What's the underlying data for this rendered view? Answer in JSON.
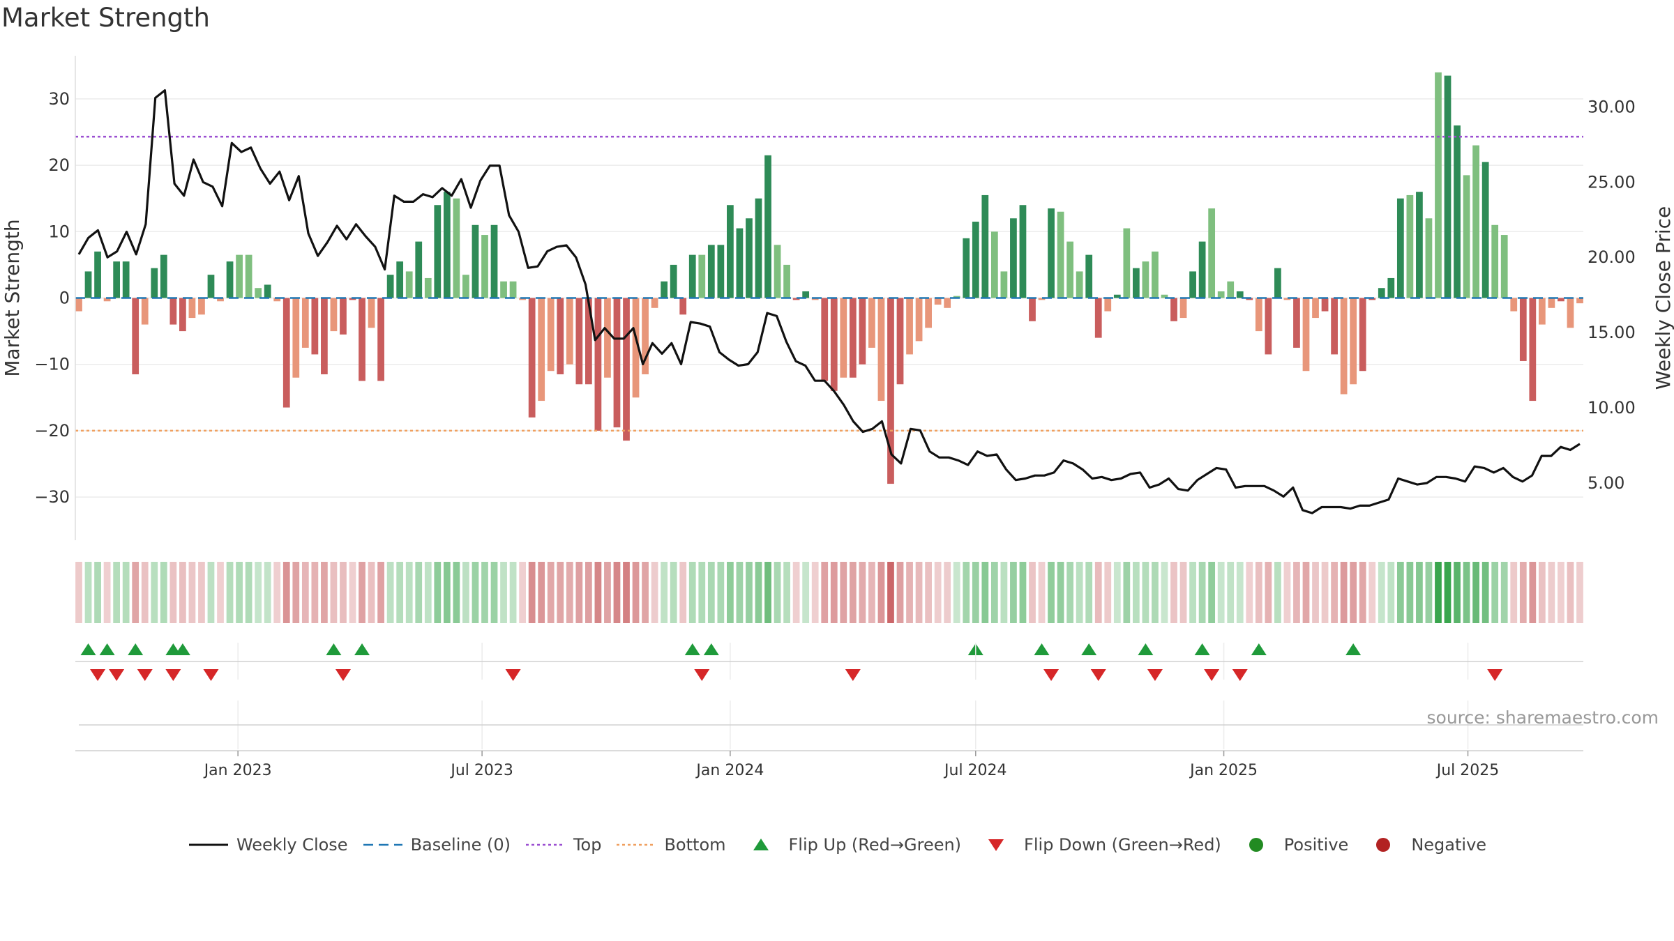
{
  "title": "Market Strength",
  "source": "source: sharemaestro.com",
  "colors": {
    "pos_dark": "#2e8b57",
    "pos_light": "#7fbf7f",
    "neg_dark": "#c95d5d",
    "neg_light": "#e8967a",
    "close": "#111111",
    "baseline": "#1f77b4",
    "top": "#9b4fd1",
    "bottom": "#f0a060",
    "flip_up": "#1f9a3a",
    "flip_down": "#d62728",
    "positive": "#228b22",
    "negative": "#b22222"
  },
  "chart_data": {
    "type": "bar",
    "left_axis": {
      "label": "Market Strength",
      "ticks": [
        30,
        20,
        10,
        0,
        -10,
        -20,
        -30
      ],
      "tick_labels": [
        "30",
        "20",
        "10",
        "0",
        "−10",
        "−20",
        "−30"
      ],
      "range": [
        -36.5,
        36.5
      ]
    },
    "right_axis": {
      "label": "Weekly Close Price",
      "ticks": [
        30,
        25,
        20,
        15,
        10,
        5
      ],
      "tick_labels": [
        "30.00",
        "25.00",
        "20.00",
        "15.00",
        "10.00",
        "5.00"
      ],
      "range": [
        1.2,
        33.4
      ]
    },
    "x_axis": {
      "start": "2022-09-05",
      "end": "2025-09-22",
      "ticks": [
        "2023-01-01",
        "2023-07-01",
        "2024-01-01",
        "2024-07-01",
        "2025-01-01",
        "2025-07-01"
      ],
      "tick_labels": [
        "Jan 2023",
        "Jul 2023",
        "Jan 2024",
        "Jul 2024",
        "Jan 2025",
        "Jul 2025"
      ]
    },
    "top_line": 24.3,
    "bottom_line": -20.0,
    "baseline": 0,
    "strength": [
      -2,
      4,
      7,
      -0.5,
      5.5,
      5.5,
      -11.5,
      -4,
      4.5,
      6.5,
      -4,
      -5,
      -3,
      -2.5,
      3.5,
      -0.5,
      5.5,
      6.5,
      6.5,
      1.5,
      2,
      -0.5,
      -16.5,
      -12,
      -7.5,
      -8.5,
      -11.5,
      -5,
      -5.5,
      -0.3,
      -12.5,
      -4.5,
      -12.5,
      3.5,
      5.5,
      4,
      8.5,
      3,
      14,
      16,
      15,
      3.5,
      11,
      9.5,
      11,
      2.5,
      2.5,
      -0.3,
      -18,
      -15.5,
      -11,
      -11.5,
      -10,
      -13,
      -13,
      -20,
      -12,
      -19.5,
      -21.5,
      -15,
      -11.5,
      -1.5,
      2.5,
      5,
      -2.5,
      6.5,
      6.5,
      8,
      8,
      14,
      10.5,
      12,
      15,
      21.5,
      8,
      5,
      -0.3,
      1,
      -0.3,
      -12.5,
      -14,
      -12,
      -12,
      -10,
      -7.5,
      -15.5,
      -28,
      -13,
      -8.5,
      -6.5,
      -4.5,
      -1,
      -1.5,
      0.3,
      9,
      11.5,
      15.5,
      10,
      4,
      12,
      14,
      -3.5,
      -0.3,
      13.5,
      13,
      8.5,
      4,
      6.5,
      -6,
      -2,
      0.5,
      10.5,
      4.5,
      5.5,
      7,
      0.5,
      -3.5,
      -3,
      4,
      8.5,
      13.5,
      1,
      2.5,
      1,
      -0.3,
      -5,
      -8.5,
      4.5,
      -0.3,
      -7.5,
      -11,
      -3,
      -2,
      -8.5,
      -14.5,
      -13,
      -11,
      -0.3,
      1.5,
      3,
      15,
      15.5,
      16,
      12,
      34,
      33.5,
      26,
      18.5,
      23,
      20.5,
      11,
      9.5,
      -2,
      -9.5,
      -15.5,
      -4,
      -1.5,
      -0.5,
      -4.5,
      -0.8
    ],
    "shade": [
      1,
      0,
      0,
      1,
      0,
      0,
      0,
      1,
      0,
      0,
      0,
      0,
      1,
      1,
      0,
      1,
      0,
      1,
      1,
      1,
      0,
      1,
      0,
      1,
      1,
      0,
      0,
      1,
      0,
      0,
      0,
      1,
      0,
      0,
      0,
      1,
      0,
      1,
      0,
      0,
      1,
      1,
      0,
      1,
      0,
      1,
      1,
      1,
      0,
      1,
      1,
      0,
      1,
      0,
      0,
      0,
      1,
      0,
      0,
      1,
      1,
      1,
      0,
      0,
      0,
      0,
      1,
      0,
      0,
      0,
      0,
      0,
      0,
      0,
      1,
      1,
      0,
      0,
      1,
      0,
      0,
      1,
      0,
      0,
      1,
      1,
      0,
      0,
      1,
      1,
      1,
      1,
      1,
      1,
      0,
      0,
      0,
      1,
      1,
      0,
      0,
      0,
      1,
      0,
      1,
      1,
      1,
      0,
      0,
      1,
      0,
      1,
      0,
      1,
      1,
      1,
      0,
      1,
      0,
      0,
      1,
      1,
      1,
      0,
      0,
      1,
      0,
      0,
      1,
      0,
      1,
      1,
      0,
      0,
      1,
      1,
      0,
      0,
      0,
      0,
      0,
      1,
      0,
      1,
      1,
      0,
      0,
      1,
      1,
      0,
      1,
      1,
      1,
      0,
      0,
      1,
      1,
      0,
      1,
      1
    ],
    "weekly_close": [
      20.2,
      21.3,
      21.8,
      20,
      20.4,
      21.7,
      20.2,
      22.2,
      30.6,
      31.1,
      24.9,
      24.1,
      26.5,
      25,
      24.7,
      23.4,
      27.6,
      27,
      27.3,
      25.9,
      24.9,
      25.7,
      23.8,
      25.4,
      21.6,
      20.1,
      21,
      22.1,
      21.2,
      22.2,
      21.4,
      20.7,
      19.2,
      24.1,
      23.7,
      23.7,
      24.2,
      24,
      24.6,
      24.1,
      25.2,
      23.3,
      25.1,
      26.1,
      26.1,
      22.8,
      21.7,
      19.3,
      19.4,
      20.4,
      20.7,
      20.8,
      20,
      18.2,
      14.5,
      15.3,
      14.6,
      14.6,
      15.3,
      12.9,
      14.3,
      13.6,
      14.3,
      12.9,
      15.7,
      15.6,
      15.4,
      13.7,
      13.2,
      12.8,
      12.9,
      13.7,
      16.3,
      16.1,
      14.4,
      13.1,
      12.8,
      11.8,
      11.8,
      11.1,
      10.2,
      9.1,
      8.4,
      8.6,
      9.1,
      6.9,
      6.3,
      8.6,
      8.5,
      7.1,
      6.7,
      6.7,
      6.5,
      6.2,
      7.1,
      6.8,
      6.9,
      5.9,
      5.2,
      5.3,
      5.5,
      5.5,
      5.7,
      6.5,
      6.3,
      5.9,
      5.3,
      5.4,
      5.2,
      5.3,
      5.6,
      5.7,
      4.7,
      4.9,
      5.3,
      4.6,
      4.5,
      5.2,
      5.6,
      6,
      5.9,
      4.7,
      4.8,
      4.8,
      4.8,
      4.5,
      4.1,
      4.7,
      3.2,
      3,
      3.4,
      3.4,
      3.4,
      3.3,
      3.5,
      3.5,
      3.7,
      3.9,
      5.3,
      5.1,
      4.9,
      5,
      5.4,
      5.4,
      5.3,
      5.1,
      6.1,
      6,
      5.7,
      6,
      5.4,
      5.1,
      5.5,
      6.8,
      6.8,
      7.4,
      7.2,
      7.6
    ],
    "flip_up_dates": [
      "2022-09-12",
      "2022-09-26",
      "2022-10-17",
      "2022-11-14",
      "2022-11-21",
      "2023-03-13",
      "2023-04-03",
      "2023-12-04",
      "2023-12-18",
      "2024-07-01",
      "2024-08-19",
      "2024-09-23",
      "2024-11-04",
      "2024-12-16",
      "2025-01-27",
      "2025-04-07"
    ],
    "flip_down_dates": [
      "2022-09-19",
      "2022-10-03",
      "2022-10-24",
      "2022-11-14",
      "2022-12-12",
      "2023-03-20",
      "2023-07-24",
      "2023-12-11",
      "2024-04-01",
      "2024-08-26",
      "2024-09-30",
      "2024-11-11",
      "2024-12-23",
      "2025-01-13",
      "2025-07-21"
    ],
    "series_names": [
      "Weekly Close",
      "Baseline (0)",
      "Top",
      "Bottom",
      "Flip Up (Red→Green)",
      "Flip Down (Green→Red)",
      "Positive",
      "Negative"
    ]
  },
  "legend": [
    {
      "key": "close",
      "label": "Weekly Close"
    },
    {
      "key": "baseline",
      "label": "Baseline (0)"
    },
    {
      "key": "top",
      "label": "Top"
    },
    {
      "key": "bottom",
      "label": "Bottom"
    },
    {
      "key": "flip_up",
      "label": "Flip Up (Red→Green)"
    },
    {
      "key": "flip_down",
      "label": "Flip Down (Green→Red)"
    },
    {
      "key": "positive",
      "label": "Positive"
    },
    {
      "key": "negative",
      "label": "Negative"
    }
  ]
}
